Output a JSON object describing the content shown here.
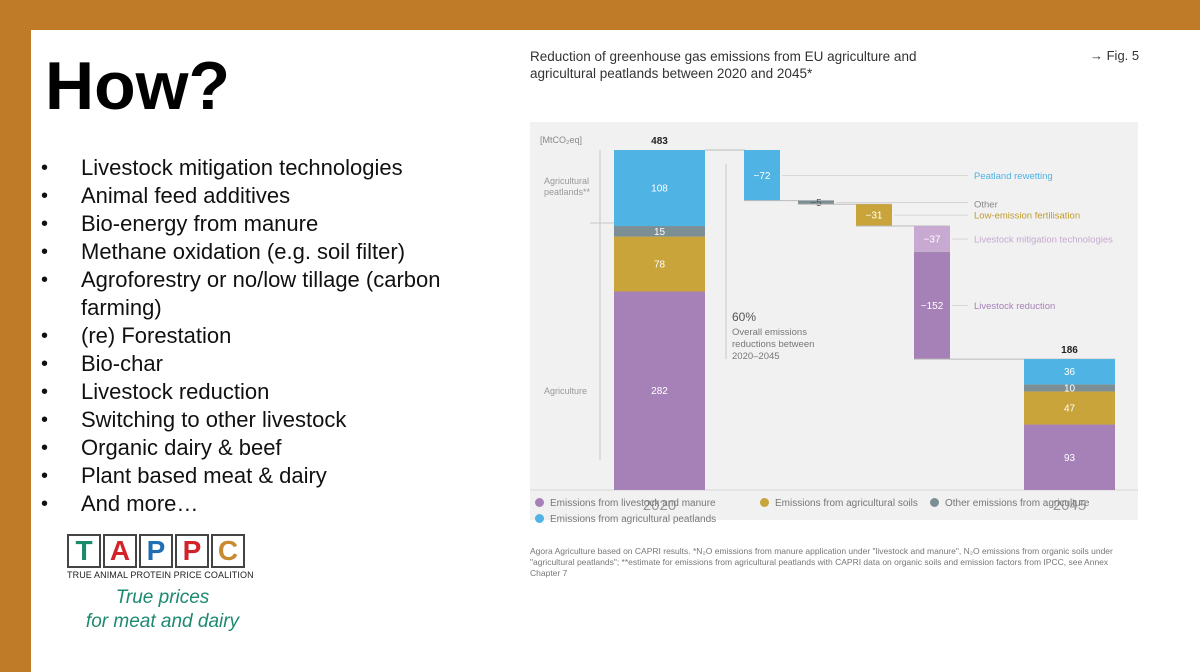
{
  "slide": {
    "title": "How?",
    "bullets": [
      "Livestock mitigation technologies",
      "Animal feed additives",
      "Bio-energy from manure",
      "Methane oxidation (e.g. soil filter)",
      "Agroforestry or no/low tillage (carbon farming)",
      "(re) Forestation",
      "Bio-char",
      "Livestock reduction",
      "Switching to other livestock",
      "Organic dairy & beef",
      "Plant based meat & dairy",
      "And more…"
    ]
  },
  "logo": {
    "letters": [
      "T",
      "A",
      "P",
      "P",
      "C"
    ],
    "letter_colors": [
      "#1a8a6a",
      "#d2232a",
      "#1f6fb5",
      "#d2232a",
      "#c9892f"
    ],
    "subtitle": "TRUE ANIMAL PROTEIN PRICE COALITION",
    "tagline_line1": "True prices",
    "tagline_line2": "for meat and dairy",
    "tagline_color": "#1d8a6f"
  },
  "chart_header": {
    "title_line1": "Reduction of greenhouse gas emissions from EU agriculture and",
    "title_line2": "agricultural peatlands between 2020 and 2045*",
    "fig_label": "→ Fig. 5"
  },
  "chart_data": {
    "type": "bar",
    "subtype": "waterfall",
    "unit_label": "[MtCO₂eq]",
    "group_labels": [
      "Agricultural peatlands**",
      "Agriculture"
    ],
    "start": {
      "label": "2020",
      "total": 483,
      "segments": [
        {
          "series": "Emissions from livestock and manure",
          "value": 282
        },
        {
          "series": "Emissions from agricultural soils",
          "value": 78
        },
        {
          "series": "Other emissions from agriculture",
          "value": 15
        },
        {
          "series": "Emissions from agricultural peatlands",
          "value": 108
        }
      ]
    },
    "steps": [
      {
        "label": "Peatland rewetting",
        "value": -72,
        "color": "#4fb3e4"
      },
      {
        "label": "Other",
        "value": -5,
        "color": "#7b8f95"
      },
      {
        "label": "Low-emission fertilisation",
        "value": -31,
        "color": "#c9a43a"
      },
      {
        "label": "Livestock mitigation technologies",
        "value": -37,
        "color": "#c7a9d2"
      },
      {
        "label": "Livestock reduction",
        "value": -152,
        "color": "#a681b8"
      }
    ],
    "end": {
      "label": "2045",
      "total": 186,
      "segments": [
        {
          "series": "Emissions from livestock and manure",
          "value": 93
        },
        {
          "series": "Emissions from agricultural soils",
          "value": 47
        },
        {
          "series": "Other emissions from agriculture",
          "value": 10
        },
        {
          "series": "Emissions from agricultural peatlands",
          "value": 36
        }
      ]
    },
    "annotation": {
      "percent": "60%",
      "line1": "Overall emissions",
      "line2": "reductions between",
      "line3": "2020–2045"
    },
    "series_colors": {
      "Emissions from livestock and manure": "#a681b8",
      "Emissions from agricultural soils": "#c9a43a",
      "Other emissions from agriculture": "#7b8f95",
      "Emissions from agricultural peatlands": "#4fb3e4"
    },
    "legend": [
      "Emissions from livestock and manure",
      "Emissions from agricultural soils",
      "Other emissions from agriculture",
      "Emissions from agricultural peatlands"
    ],
    "ylim": [
      0,
      483
    ],
    "grid": false
  },
  "footnote": "Agora Agriculture based on CAPRI results. *N₂O emissions from manure application under \"livestock and manure\", N₂O emissions from organic soils under \"agricultural peatlands\"; **estimate for emissions from agricultural peatlands with CAPRI data on organic soils and emission factors from IPCC, see Annex Chapter 7"
}
